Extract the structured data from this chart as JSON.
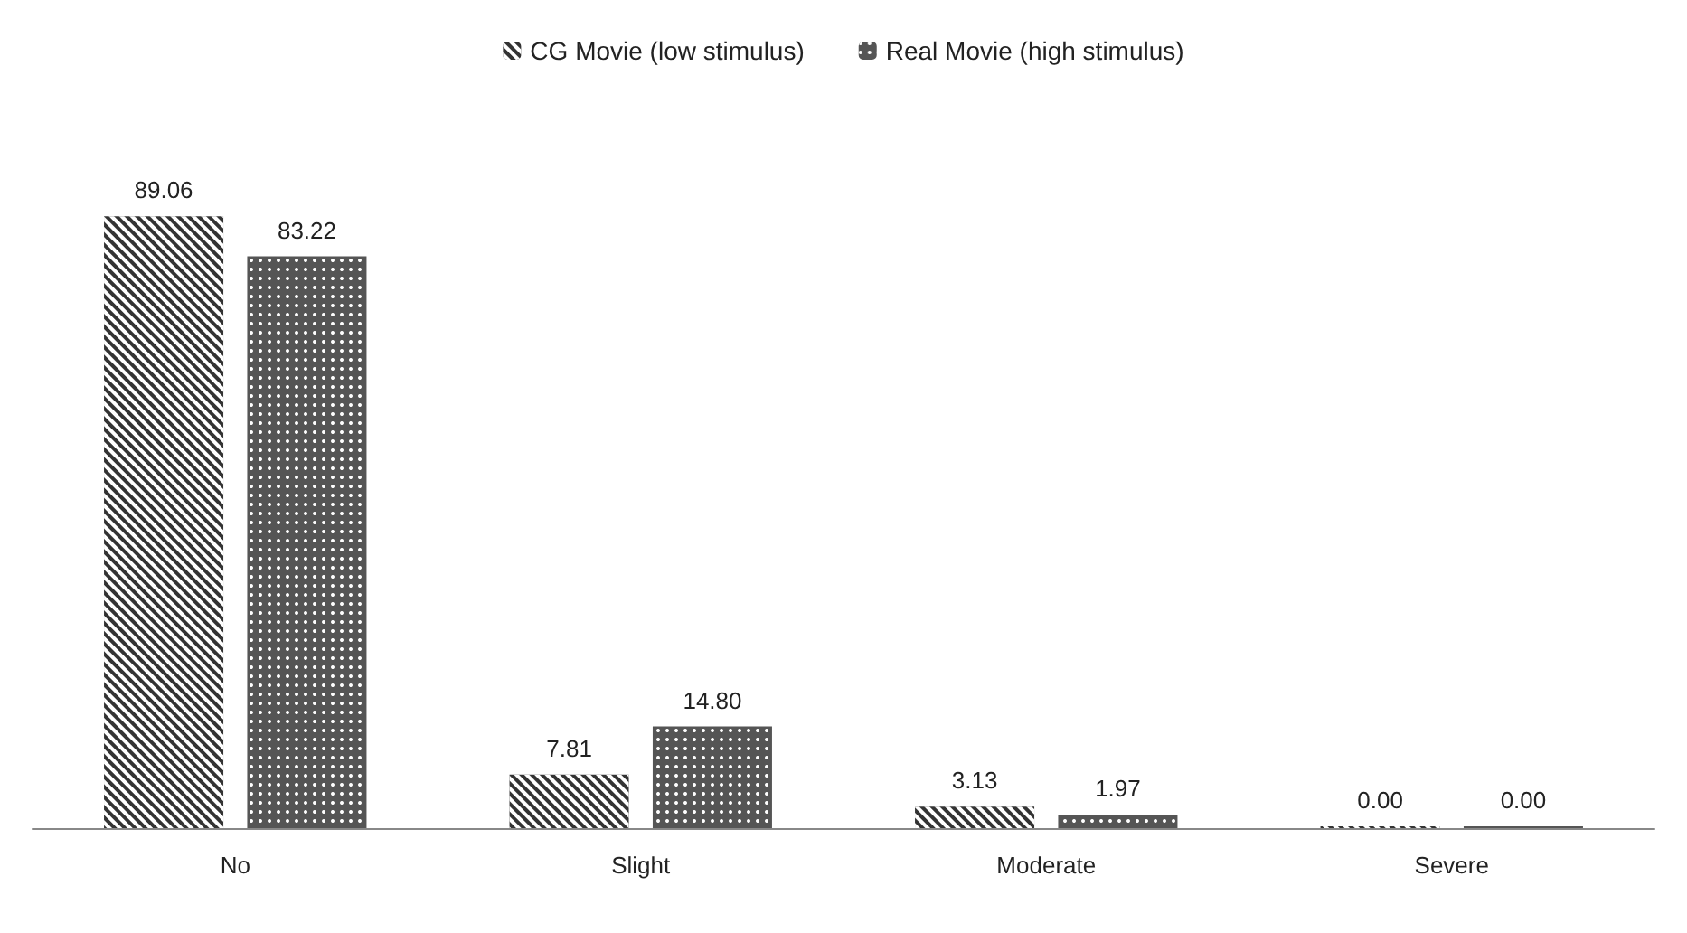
{
  "chart_data": {
    "type": "bar",
    "categories": [
      "No",
      "Slight",
      "Moderate",
      "Severe"
    ],
    "series": [
      {
        "name": "CG Movie (low stimulus)",
        "color": "#333333",
        "values": [
          89.06,
          7.81,
          3.13,
          0.0
        ],
        "value_labels": [
          "89.06",
          "7.81",
          "3.13",
          "0.00"
        ]
      },
      {
        "name": "Real Movie (high stimulus)",
        "color": "#555555",
        "values": [
          83.22,
          14.8,
          1.97,
          0.0
        ],
        "value_labels": [
          "83.22",
          "14.80",
          "1.97",
          "0.00"
        ]
      }
    ],
    "grid": false,
    "legend": "top"
  }
}
